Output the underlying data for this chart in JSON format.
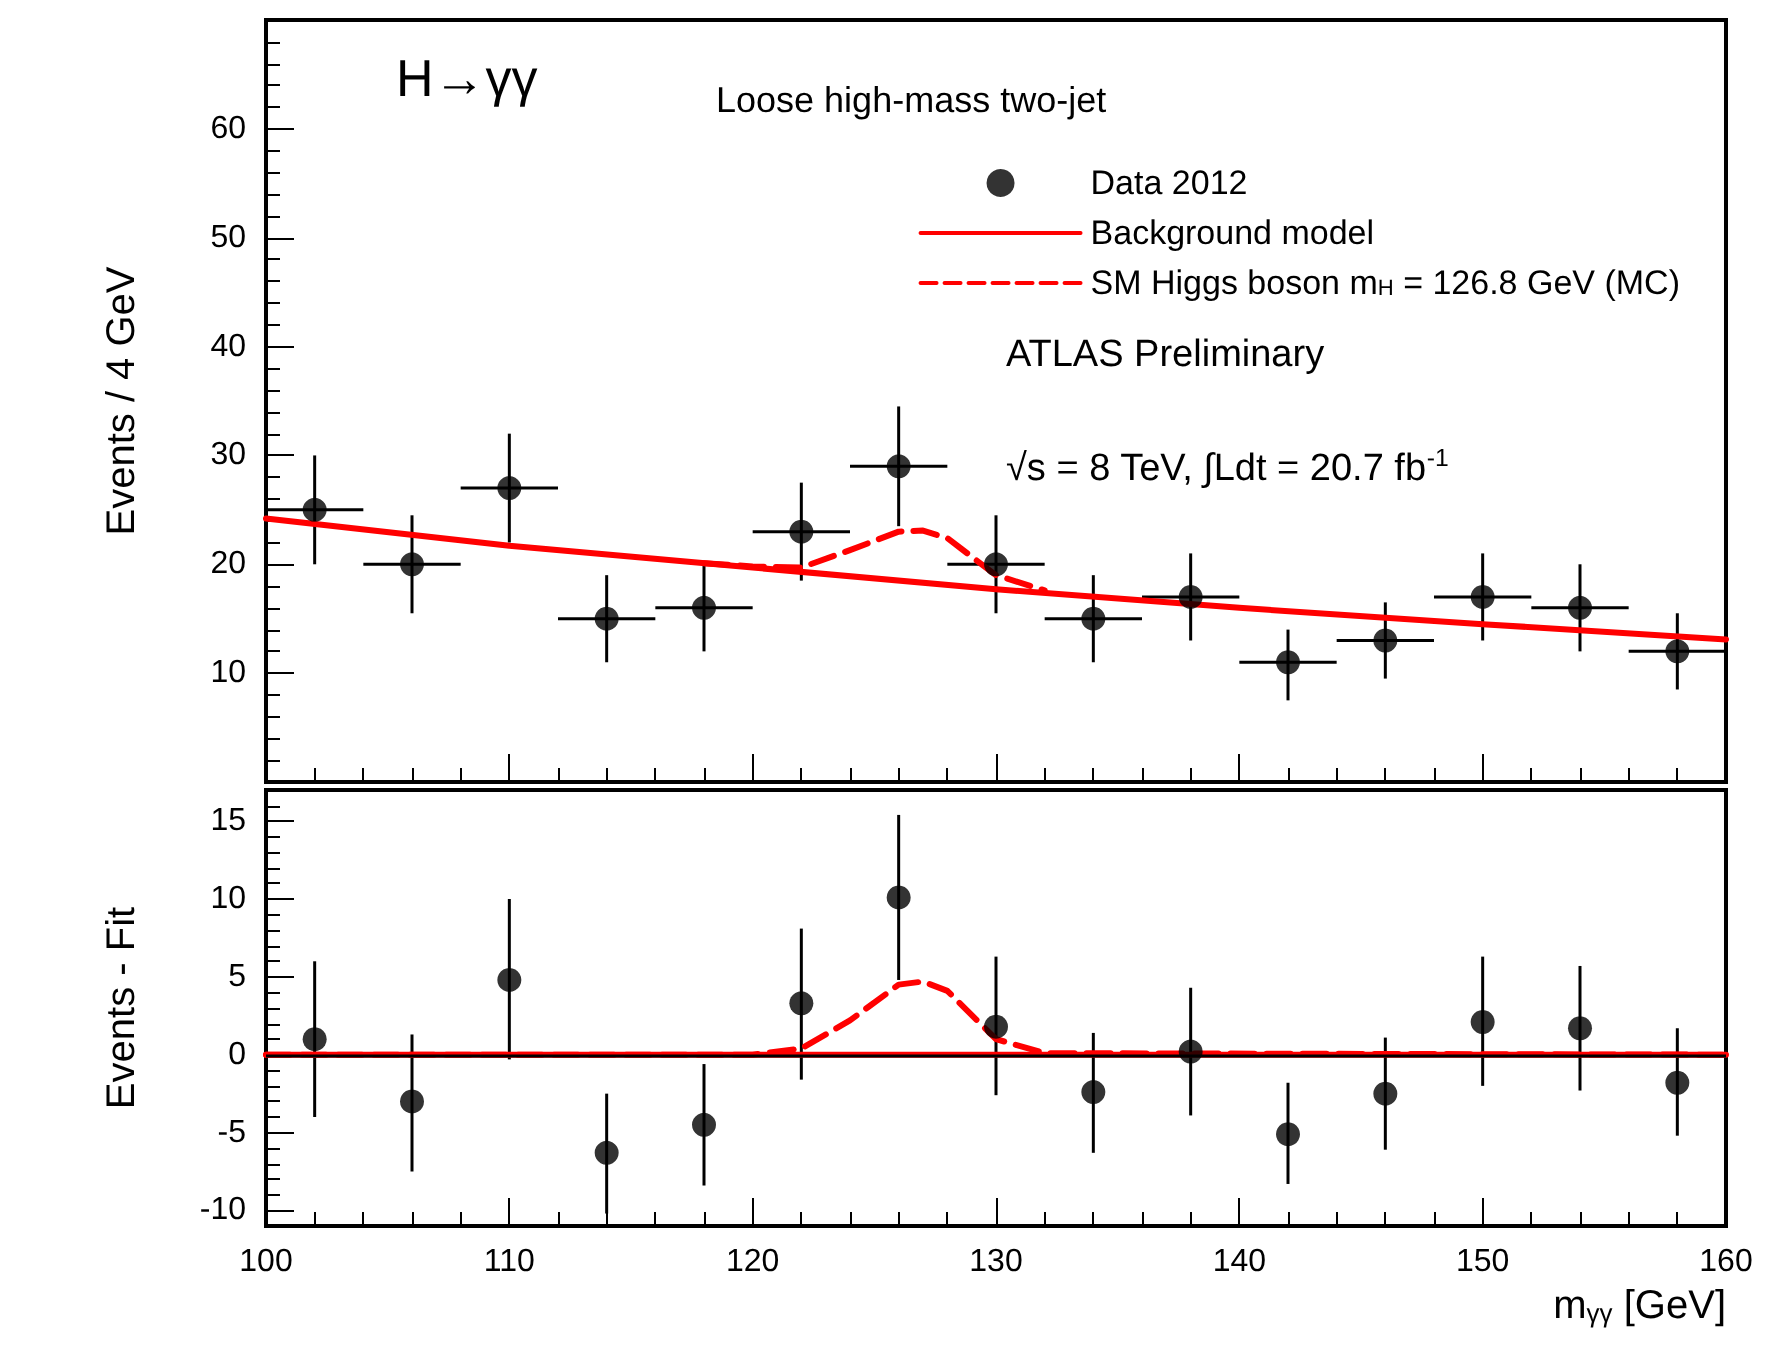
{
  "chart_data": [
    {
      "type": "scatter",
      "ylabel": "Events / 4 GeV",
      "xlim": [
        100,
        160
      ],
      "xticks": [
        100,
        110,
        120,
        130,
        140,
        150,
        160
      ],
      "ylim": [
        0,
        70
      ],
      "yticks": [
        10,
        20,
        30,
        40,
        50,
        60
      ],
      "tick_labels": "y",
      "grid": false,
      "legend": "top right",
      "annotations": [
        "H→γγ",
        "Loose high-mass two-jet",
        "ATLAS Preliminary",
        "√s = 8 TeV, ∫Ldt = 20.7 fb$^{-1}$"
      ],
      "series": [
        {
          "name": "Data 2012",
          "marker": "circle",
          "color": "#000000",
          "x": [
            102,
            106,
            110,
            114,
            118,
            122,
            126,
            130,
            134,
            138,
            142,
            146,
            150,
            154,
            158
          ],
          "values": [
            25,
            20,
            27,
            15,
            16,
            23,
            29,
            20,
            15,
            17,
            11,
            13,
            17,
            16,
            12
          ],
          "errors": [
            [
              20,
              30
            ],
            [
              15.5,
              24.5
            ],
            [
              22,
              32
            ],
            [
              11,
              19
            ],
            [
              12,
              20
            ],
            [
              18.5,
              27.5
            ],
            [
              23.5,
              34.5
            ],
            [
              15.5,
              24.5
            ],
            [
              11,
              19
            ],
            [
              13,
              21
            ],
            [
              7.5,
              14
            ],
            [
              9.5,
              16.5
            ],
            [
              13,
              21
            ],
            [
              12,
              20
            ],
            [
              8.5,
              15.5
            ]
          ],
          "xerrors": [
            2,
            2,
            2,
            2,
            2,
            2,
            2,
            2,
            2,
            2,
            2,
            2,
            2,
            2,
            2
          ]
        },
        {
          "name": "Background model",
          "type": "line",
          "marker": "none",
          "color": "#ff0000",
          "line_style": "solid",
          "x": [
            100,
            110,
            120,
            130,
            140,
            150,
            160
          ],
          "values": [
            24.2,
            21.7,
            19.7,
            17.7,
            16,
            14.5,
            13.1
          ]
        },
        {
          "name": "SM Higgs boson m$_{H}$ = 126.8 GeV (MC)",
          "type": "line",
          "marker": "none",
          "color": "#ff0000",
          "line_style": "dashed",
          "x": [
            118,
            120,
            122,
            124,
            126,
            127,
            128,
            130,
            132
          ],
          "values": [
            20.1,
            19.8,
            19.7,
            21.3,
            23.0,
            23.1,
            22.4,
            19.0,
            17.6
          ]
        }
      ]
    },
    {
      "type": "scatter",
      "xlabel": "m$_{γγ}$ [GeV]",
      "ylabel": "Events - Fit",
      "xlim": [
        100,
        160
      ],
      "xticks": [
        100,
        110,
        120,
        130,
        140,
        150,
        160
      ],
      "ylim": [
        -11,
        17
      ],
      "yticks": [
        -10,
        -5,
        0,
        5,
        10,
        15
      ],
      "grid": false,
      "ref_lines": [
        {
          "axis": "y",
          "value": 0,
          "color": "#000000"
        }
      ],
      "series": [
        {
          "marker": "circle",
          "color": "#000000",
          "x": [
            102,
            106,
            110,
            114,
            118,
            122,
            126,
            130,
            134,
            138,
            142,
            146,
            150,
            154,
            158
          ],
          "values": [
            1,
            -3,
            4.8,
            -6.3,
            -4.5,
            3.3,
            10.1,
            1.8,
            -2.4,
            0.2,
            -5.1,
            -2.5,
            2.1,
            1.7,
            -1.8
          ],
          "errors": [
            [
              -4,
              6
            ],
            [
              -7.5,
              1.3
            ],
            [
              -0.3,
              10
            ],
            [
              -10.2,
              -2.5
            ],
            [
              -8.4,
              -0.6
            ],
            [
              -1.6,
              8.1
            ],
            [
              4.8,
              15.4
            ],
            [
              -2.6,
              6.3
            ],
            [
              -6.3,
              1.4
            ],
            [
              -3.9,
              4.3
            ],
            [
              -8.3,
              -1.8
            ],
            [
              -6.1,
              1.1
            ],
            [
              -2,
              6.3
            ],
            [
              -2.3,
              5.7
            ],
            [
              -5.2,
              1.7
            ]
          ]
        },
        {
          "type": "line",
          "marker": "none",
          "color": "#ff0000",
          "line_style": "solid",
          "x": [
            100,
            160
          ],
          "values": [
            0,
            0
          ]
        },
        {
          "type": "line",
          "marker": "none",
          "color": "#ff0000",
          "line_style": "dashed",
          "x": [
            100,
            118,
            120,
            122,
            124,
            126,
            127,
            128,
            130,
            132,
            160
          ],
          "values": [
            0,
            0,
            0,
            0.4,
            2.2,
            4.5,
            4.7,
            4.1,
            1.0,
            0.1,
            0
          ]
        }
      ]
    }
  ]
}
